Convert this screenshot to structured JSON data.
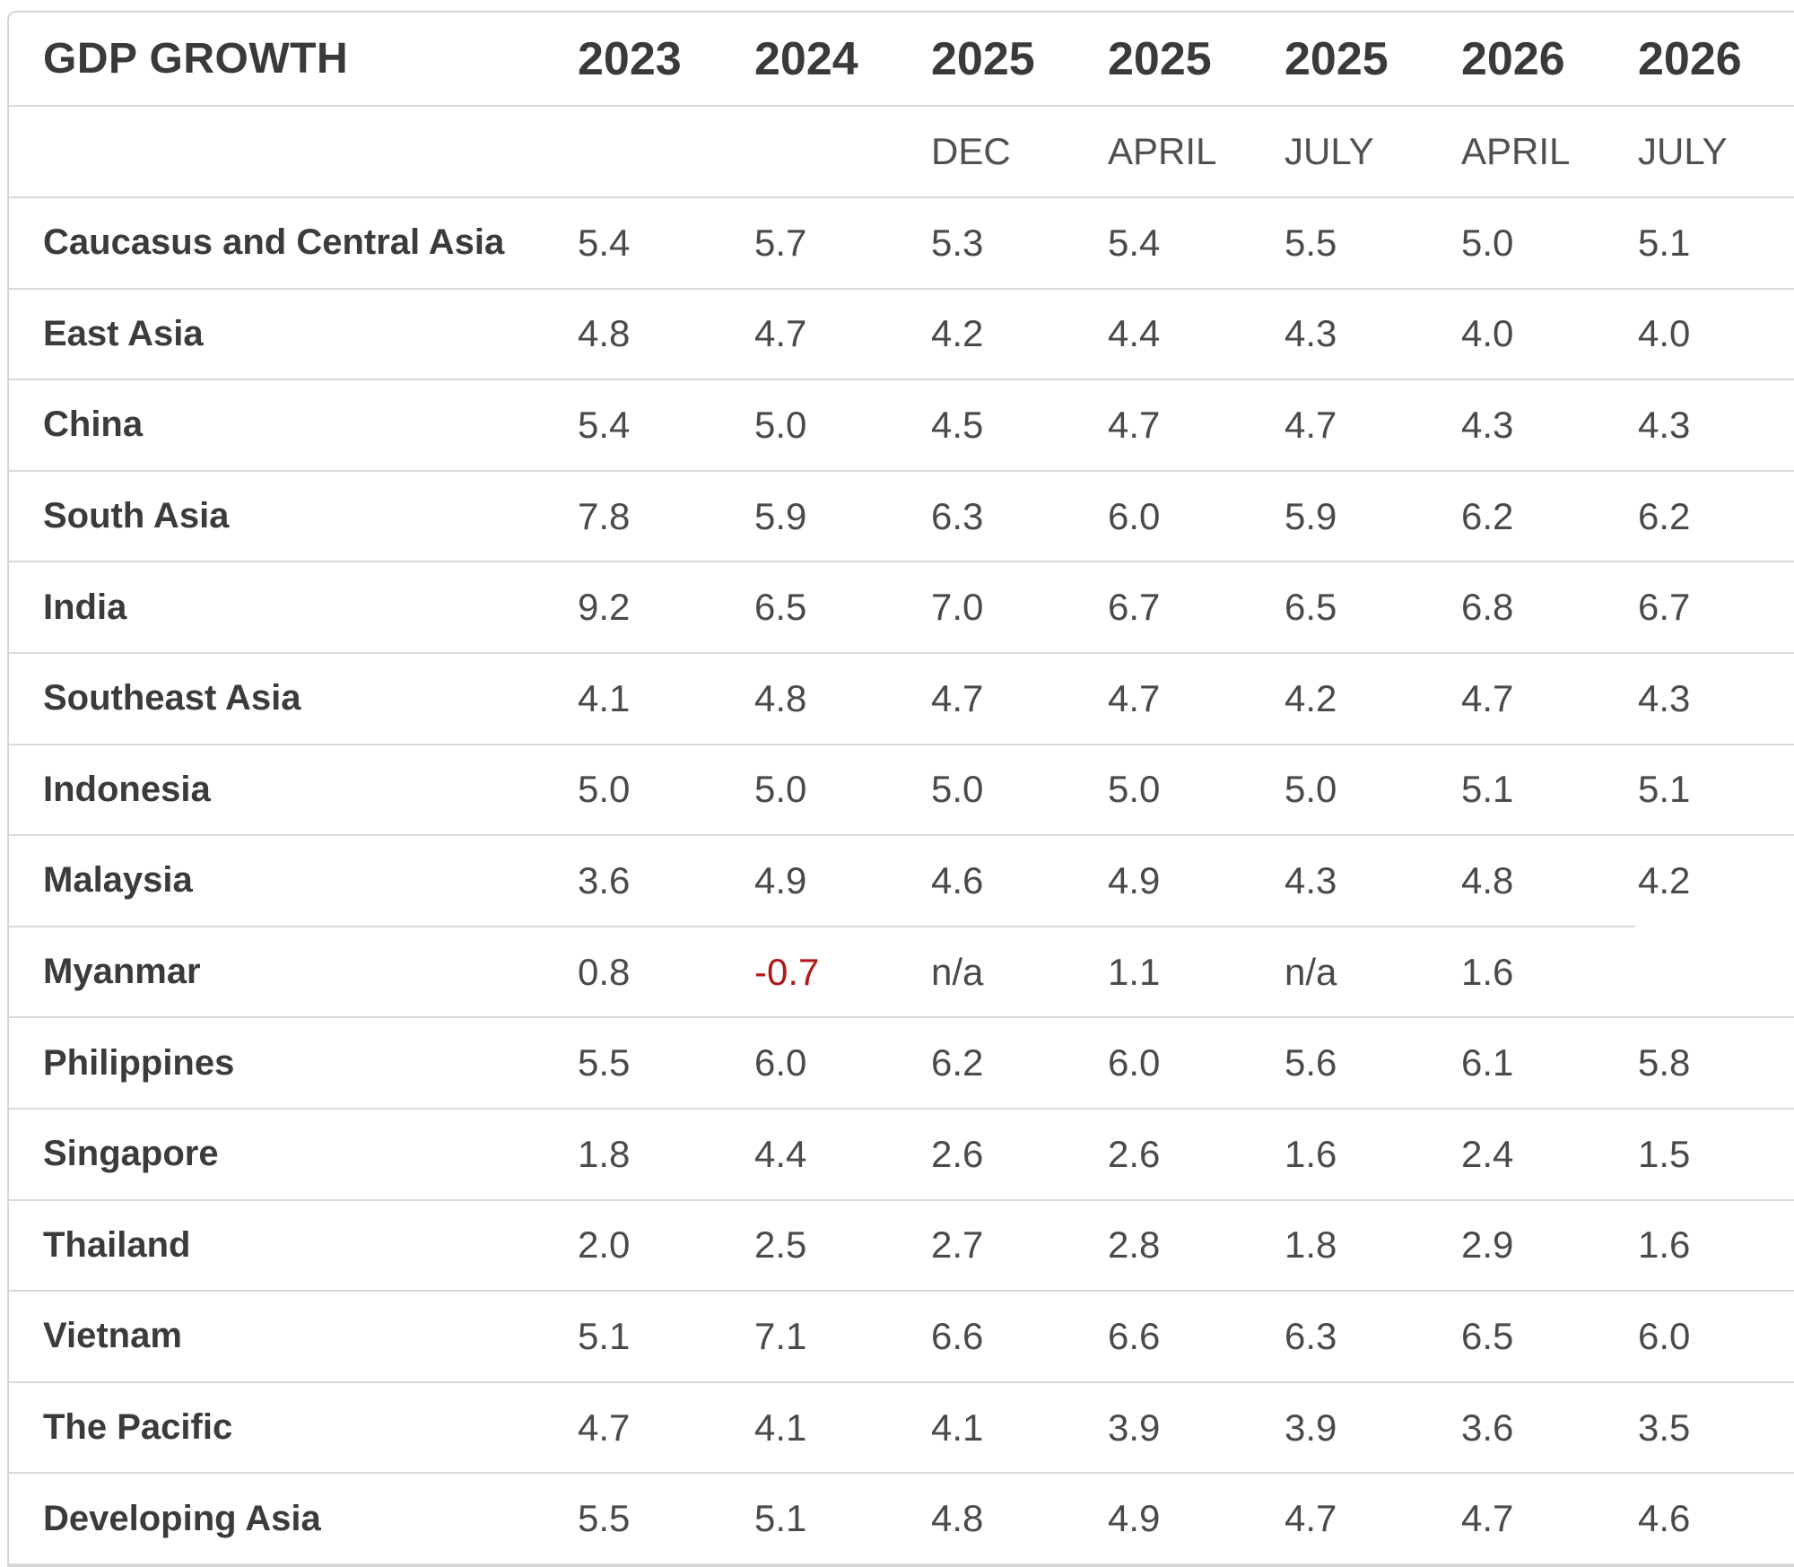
{
  "table": {
    "title": "GDP GROWTH",
    "years": [
      "2023",
      "2024",
      "2025",
      "2025",
      "2025",
      "2026",
      "2026"
    ],
    "months": [
      "",
      "",
      "DEC",
      "APRIL",
      "JULY",
      "APRIL",
      "JULY"
    ],
    "rows": [
      {
        "region": "Caucasus and Central Asia",
        "values": [
          "5.4",
          "5.7",
          "5.3",
          "5.4",
          "5.5",
          "5.0",
          "5.1"
        ]
      },
      {
        "region": "East Asia",
        "values": [
          "4.8",
          "4.7",
          "4.2",
          "4.4",
          "4.3",
          "4.0",
          "4.0"
        ]
      },
      {
        "region": "China",
        "values": [
          "5.4",
          "5.0",
          "4.5",
          "4.7",
          "4.7",
          "4.3",
          "4.3"
        ]
      },
      {
        "region": "South Asia",
        "values": [
          "7.8",
          "5.9",
          "6.3",
          "6.0",
          "5.9",
          "6.2",
          "6.2"
        ]
      },
      {
        "region": "India",
        "values": [
          "9.2",
          "6.5",
          "7.0",
          "6.7",
          "6.5",
          "6.8",
          "6.7"
        ]
      },
      {
        "region": "Southeast Asia",
        "values": [
          "4.1",
          "4.8",
          "4.7",
          "4.7",
          "4.2",
          "4.7",
          "4.3"
        ]
      },
      {
        "region": "Indonesia",
        "values": [
          "5.0",
          "5.0",
          "5.0",
          "5.0",
          "5.0",
          "5.1",
          "5.1"
        ]
      },
      {
        "region": "Malaysia",
        "values": [
          "3.6",
          "4.9",
          "4.6",
          "4.9",
          "4.3",
          "4.8",
          "4.2"
        ]
      },
      {
        "region": "Myanmar",
        "values": [
          "0.8",
          "-0.7",
          "n/a",
          "1.1",
          "n/a",
          "1.6",
          ""
        ]
      },
      {
        "region": "Philippines",
        "values": [
          "5.5",
          "6.0",
          "6.2",
          "6.0",
          "5.6",
          "6.1",
          "5.8"
        ]
      },
      {
        "region": "Singapore",
        "values": [
          "1.8",
          "4.4",
          "2.6",
          "2.6",
          "1.6",
          "2.4",
          "1.5"
        ]
      },
      {
        "region": "Thailand",
        "values": [
          "2.0",
          "2.5",
          "2.7",
          "2.8",
          "1.8",
          "2.9",
          "1.6"
        ]
      },
      {
        "region": "Vietnam",
        "values": [
          "5.1",
          "7.1",
          "6.6",
          "6.6",
          "6.3",
          "6.5",
          "6.0"
        ]
      },
      {
        "region": "The Pacific",
        "values": [
          "4.7",
          "4.1",
          "4.1",
          "3.9",
          "3.9",
          "3.6",
          "3.5"
        ]
      },
      {
        "region": "Developing Asia",
        "values": [
          "5.5",
          "5.1",
          "4.8",
          "4.9",
          "4.7",
          "4.7",
          "4.6"
        ]
      }
    ],
    "negative_color": "#b01818"
  }
}
